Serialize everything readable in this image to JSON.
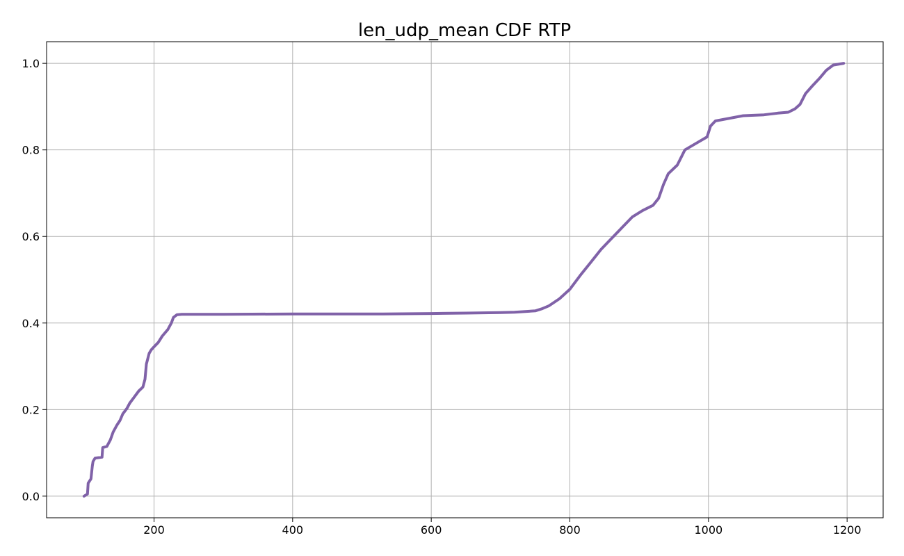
{
  "chart_data": {
    "type": "line",
    "title": "len_udp_mean CDF RTP",
    "xlabel": "",
    "ylabel": "",
    "xlim": [
      45,
      1252
    ],
    "ylim": [
      -0.05,
      1.05
    ],
    "grid": true,
    "x_ticks": [
      200,
      400,
      600,
      800,
      1000,
      1200
    ],
    "y_ticks": [
      0.0,
      0.2,
      0.4,
      0.6,
      0.8,
      1.0
    ],
    "x_tick_labels": [
      "200",
      "400",
      "600",
      "800",
      "1000",
      "1200"
    ],
    "y_tick_labels": [
      "0.0",
      "0.2",
      "0.4",
      "0.6",
      "0.8",
      "1.0"
    ],
    "colors": {
      "series": "#8062a8",
      "grid": "#b0b0b0"
    },
    "series": [
      {
        "points": [
          [
            99,
            0.0
          ],
          [
            104,
            0.005
          ],
          [
            105,
            0.03
          ],
          [
            109,
            0.04
          ],
          [
            111,
            0.07
          ],
          [
            112,
            0.08
          ],
          [
            115,
            0.088
          ],
          [
            125,
            0.09
          ],
          [
            126,
            0.112
          ],
          [
            132,
            0.115
          ],
          [
            137,
            0.13
          ],
          [
            141,
            0.148
          ],
          [
            146,
            0.163
          ],
          [
            151,
            0.175
          ],
          [
            155,
            0.19
          ],
          [
            161,
            0.203
          ],
          [
            165,
            0.215
          ],
          [
            171,
            0.228
          ],
          [
            178,
            0.243
          ],
          [
            184,
            0.252
          ],
          [
            187,
            0.27
          ],
          [
            189,
            0.305
          ],
          [
            193,
            0.33
          ],
          [
            196,
            0.338
          ],
          [
            200,
            0.345
          ],
          [
            206,
            0.355
          ],
          [
            212,
            0.37
          ],
          [
            220,
            0.385
          ],
          [
            225,
            0.4
          ],
          [
            228,
            0.413
          ],
          [
            233,
            0.419
          ],
          [
            240,
            0.42
          ],
          [
            300,
            0.42
          ],
          [
            400,
            0.421
          ],
          [
            530,
            0.421
          ],
          [
            600,
            0.422
          ],
          [
            650,
            0.423
          ],
          [
            700,
            0.424
          ],
          [
            720,
            0.425
          ],
          [
            750,
            0.428
          ],
          [
            760,
            0.433
          ],
          [
            770,
            0.44
          ],
          [
            785,
            0.456
          ],
          [
            800,
            0.478
          ],
          [
            815,
            0.51
          ],
          [
            830,
            0.54
          ],
          [
            845,
            0.57
          ],
          [
            860,
            0.595
          ],
          [
            875,
            0.62
          ],
          [
            890,
            0.645
          ],
          [
            905,
            0.66
          ],
          [
            920,
            0.672
          ],
          [
            928,
            0.688
          ],
          [
            935,
            0.72
          ],
          [
            942,
            0.745
          ],
          [
            955,
            0.765
          ],
          [
            966,
            0.8
          ],
          [
            982,
            0.815
          ],
          [
            998,
            0.83
          ],
          [
            1003,
            0.855
          ],
          [
            1010,
            0.867
          ],
          [
            1020,
            0.87
          ],
          [
            1040,
            0.876
          ],
          [
            1050,
            0.879
          ],
          [
            1080,
            0.881
          ],
          [
            1100,
            0.885
          ],
          [
            1115,
            0.887
          ],
          [
            1125,
            0.895
          ],
          [
            1132,
            0.905
          ],
          [
            1140,
            0.93
          ],
          [
            1150,
            0.948
          ],
          [
            1160,
            0.965
          ],
          [
            1170,
            0.984
          ],
          [
            1180,
            0.996
          ],
          [
            1195,
            1.0
          ]
        ]
      }
    ]
  }
}
